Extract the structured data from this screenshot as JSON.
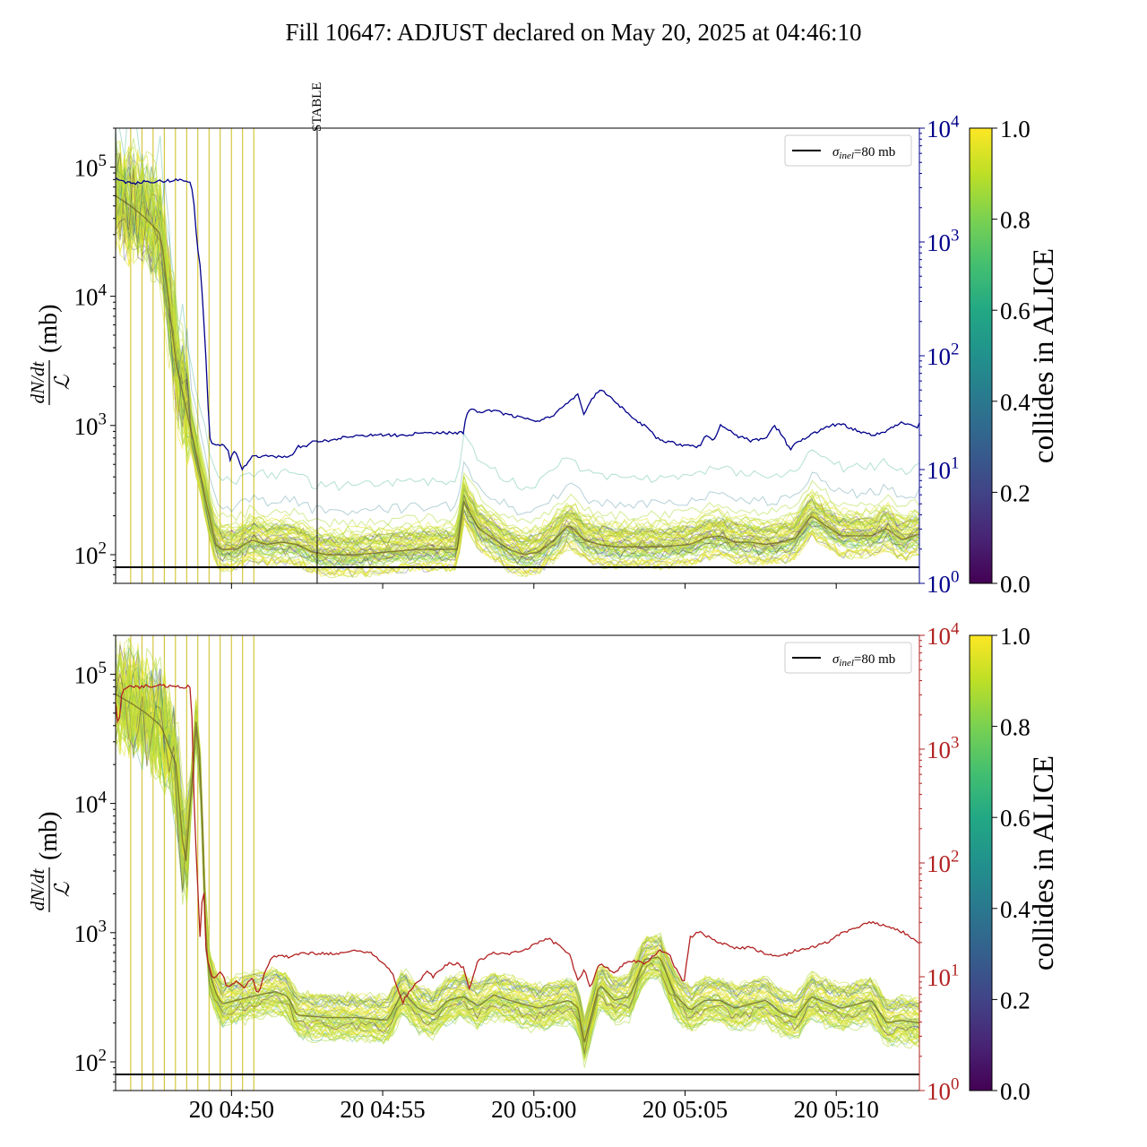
{
  "figure": {
    "title": "Fill 10647: ADJUST declared on May 20, 2025 at 04:46:10"
  },
  "chart_data": [
    {
      "type": "line",
      "panel": "top",
      "ylabel_numerator": "dN/dt",
      "ylabel_denominator": "ℒ",
      "ylabel_unit": "(mb)",
      "yscale": "log",
      "ylim": [
        60,
        200000
      ],
      "y_ticks": [
        "10^2",
        "10^3",
        "10^4",
        "10^5"
      ],
      "xlim": [
        "20 04:46:10",
        "20 05:12:45"
      ],
      "x_ticks": [
        "20 04:50",
        "20 04:55",
        "20 05:00",
        "20 05:05",
        "20 05:10"
      ],
      "x_ticks_labeled": false,
      "twin_axis": {
        "yscale": "log",
        "ylim": [
          1,
          10000
        ],
        "y_ticks": [
          "10^0",
          "10^1",
          "10^2",
          "10^3",
          "10^4"
        ],
        "color": "#00008b"
      },
      "reference_line": {
        "label": "σinel=80 mb",
        "value": 80,
        "color": "#000000"
      },
      "annotation": {
        "label": "STABLE",
        "x": "20 04:52:50"
      },
      "legend": {
        "label_symbol": "σ",
        "label_subscript": "inel",
        "label_rest": "=80 mb",
        "placement": "top-right"
      },
      "colorbar": {
        "label": "collides in ALICE",
        "range": [
          0,
          1
        ],
        "ticks": [
          "0.0",
          "0.2",
          "0.4",
          "0.6",
          "0.8",
          "1.0"
        ],
        "colormap": "viridis"
      },
      "twin_series": {
        "name": "luminosity (twin axis)",
        "x_minutes_after_0446": [
          0.0,
          0.2,
          0.4,
          0.7,
          1,
          1.5,
          2,
          2.5,
          2.6,
          2.7,
          2.8,
          2.9,
          3.0,
          3.1,
          3.2,
          3.3,
          3.4,
          3.5,
          3.7,
          3.8,
          3.9,
          4.0,
          4.2,
          4.5,
          4.8,
          5,
          5.2,
          5.4,
          5.5,
          5.7,
          5.9,
          6,
          6.3,
          6.5,
          6.7,
          7,
          7.5,
          8,
          8.5,
          9,
          9.5,
          10,
          10.5,
          11,
          11.5,
          11.6,
          11.8,
          12,
          12.5,
          13,
          13.5,
          14,
          14.5,
          15,
          15.3,
          15.5,
          15.7,
          16,
          16.3,
          16.5,
          17,
          17.5,
          18,
          18.5,
          19,
          19.3,
          19.5,
          19.8,
          20,
          20.5,
          21,
          21.5,
          21.8,
          22,
          22.3,
          22.5,
          23,
          23.5,
          24,
          24.5,
          25,
          25.5,
          26,
          26.5,
          26.6
        ],
        "y": [
          3600,
          3500,
          3300,
          3300,
          3400,
          3400,
          3500,
          3400,
          2000,
          900,
          600,
          250,
          80,
          20,
          17,
          17,
          16,
          17,
          15,
          12,
          15,
          14,
          10,
          13,
          13,
          13,
          13,
          13,
          13,
          13,
          14,
          16,
          16,
          18,
          18,
          18,
          19,
          20,
          20,
          20,
          20,
          21,
          21,
          21,
          21,
          30,
          35,
          32,
          33,
          30,
          28,
          27,
          30,
          40,
          45,
          30,
          40,
          50,
          45,
          40,
          30,
          24,
          18,
          17,
          16,
          16,
          20,
          18,
          25,
          20,
          18,
          19,
          24,
          21,
          15,
          17,
          20,
          24,
          25,
          22,
          20,
          22,
          26,
          23,
          26
        ],
        "units": "right-axis data units"
      },
      "band_series": {
        "name": "per-bunch dN/dt / L (median band)",
        "x_minutes_after_0446": [
          0,
          0.5,
          1,
          1.5,
          2,
          2.5,
          3,
          3.3,
          3.5,
          4,
          4.5,
          5,
          5.5,
          6,
          6.5,
          7,
          8,
          9,
          10,
          11,
          11.3,
          11.5,
          12,
          13,
          13.5,
          14,
          14.5,
          15,
          15.5,
          16,
          16.5,
          17,
          18,
          19,
          19.5,
          20,
          20.5,
          21,
          21.5,
          22,
          22.5,
          23,
          24,
          25,
          25.5,
          26,
          26.6
        ],
        "y": [
          60000,
          50000,
          40000,
          30000,
          3000,
          900,
          250,
          120,
          110,
          110,
          130,
          120,
          125,
          120,
          105,
          100,
          100,
          105,
          110,
          110,
          110,
          260,
          160,
          110,
          100,
          105,
          130,
          170,
          130,
          120,
          115,
          115,
          115,
          120,
          135,
          140,
          125,
          125,
          120,
          125,
          135,
          200,
          140,
          140,
          160,
          130,
          145
        ]
      }
    },
    {
      "type": "line",
      "panel": "bottom",
      "ylabel_numerator": "dN/dt",
      "ylabel_denominator": "ℒ",
      "ylabel_unit": "(mb)",
      "yscale": "log",
      "ylim": [
        60,
        200000
      ],
      "y_ticks": [
        "10^2",
        "10^3",
        "10^4",
        "10^5"
      ],
      "xlim": [
        "20 04:46:10",
        "20 05:12:45"
      ],
      "x_ticks": [
        "20 04:50",
        "20 04:55",
        "20 05:00",
        "20 05:05",
        "20 05:10"
      ],
      "twin_axis": {
        "yscale": "log",
        "ylim": [
          1,
          10000
        ],
        "y_ticks": [
          "10^0",
          "10^1",
          "10^2",
          "10^3",
          "10^4"
        ],
        "color": "#b22222"
      },
      "reference_line": {
        "label": "σinel=80 mb",
        "value": 80,
        "color": "#000000"
      },
      "legend": {
        "label_symbol": "σ",
        "label_subscript": "inel",
        "label_rest": "=80 mb",
        "placement": "top-right"
      },
      "colorbar": {
        "label": "collides in ALICE",
        "range": [
          0,
          1
        ],
        "ticks": [
          "0.0",
          "0.2",
          "0.4",
          "0.6",
          "0.8",
          "1.0"
        ],
        "colormap": "viridis"
      },
      "twin_series": {
        "name": "luminosity (twin axis)",
        "x_minutes_after_0446": [
          0.0,
          0.1,
          0.2,
          0.3,
          0.4,
          0.6,
          0.8,
          1,
          1.5,
          2,
          2.3,
          2.5,
          2.6,
          2.8,
          2.9,
          3.0,
          3.1,
          3.2,
          3.3,
          3.5,
          3.7,
          4,
          4.3,
          4.5,
          4.7,
          5,
          5.2,
          5.5,
          5.7,
          6,
          6.5,
          7,
          7.5,
          8,
          8.5,
          9,
          9.2,
          9.5,
          9.8,
          10,
          10.3,
          10.5,
          11,
          11.3,
          11.5,
          11.7,
          12,
          12.5,
          13,
          13.5,
          14,
          14.3,
          14.5,
          15,
          15.3,
          15.5,
          15.7,
          16,
          16.5,
          17,
          17.5,
          18,
          18.3,
          18.5,
          18.8,
          19,
          19.3,
          19.5,
          20,
          20.5,
          21,
          21.5,
          22,
          22.5,
          23,
          23.5,
          24,
          24.5,
          25,
          25.5,
          26,
          26.3,
          26.6
        ],
        "y": [
          2500,
          1500,
          3000,
          3400,
          3500,
          3500,
          3500,
          3600,
          3600,
          3600,
          3500,
          3600,
          300,
          20,
          80,
          15,
          12,
          10,
          10,
          11,
          8,
          9,
          8,
          10,
          7,
          12,
          15,
          15,
          15,
          16,
          16,
          16,
          16,
          17,
          16,
          12,
          10,
          6,
          8,
          9,
          11,
          10,
          13,
          13,
          12,
          8,
          14,
          16,
          16,
          17,
          20,
          22,
          20,
          16,
          9,
          12,
          8,
          13,
          11,
          14,
          13,
          17,
          16,
          12,
          9,
          22,
          25,
          23,
          20,
          18,
          18,
          16,
          15,
          17,
          18,
          20,
          24,
          27,
          30,
          28,
          25,
          22,
          20
        ]
      },
      "band_series": {
        "name": "per-bunch dN/dt / L (median band)",
        "x_minutes_after_0446": [
          0,
          0.5,
          1,
          1.5,
          2,
          2.3,
          2.5,
          2.7,
          2.9,
          3,
          3.3,
          3.5,
          4,
          4.5,
          5,
          5.3,
          5.7,
          6,
          7,
          8,
          9,
          9.5,
          10,
          10.5,
          11,
          11.5,
          12,
          12.5,
          13,
          14,
          15,
          15.3,
          15.5,
          16,
          16.5,
          17,
          17.5,
          18,
          18.5,
          19,
          19.5,
          20,
          20.5,
          21,
          21.5,
          22,
          22.5,
          23,
          24,
          25,
          25.5,
          26,
          26.6
        ],
        "y": [
          70000,
          60000,
          50000,
          40000,
          20000,
          3000,
          12000,
          60000,
          5000,
          600,
          350,
          280,
          300,
          320,
          340,
          350,
          320,
          230,
          220,
          220,
          210,
          350,
          260,
          230,
          300,
          320,
          270,
          330,
          300,
          260,
          300,
          260,
          140,
          400,
          300,
          320,
          620,
          650,
          330,
          250,
          300,
          300,
          260,
          280,
          300,
          240,
          220,
          320,
          260,
          300,
          200,
          210,
          200
        ]
      }
    }
  ]
}
